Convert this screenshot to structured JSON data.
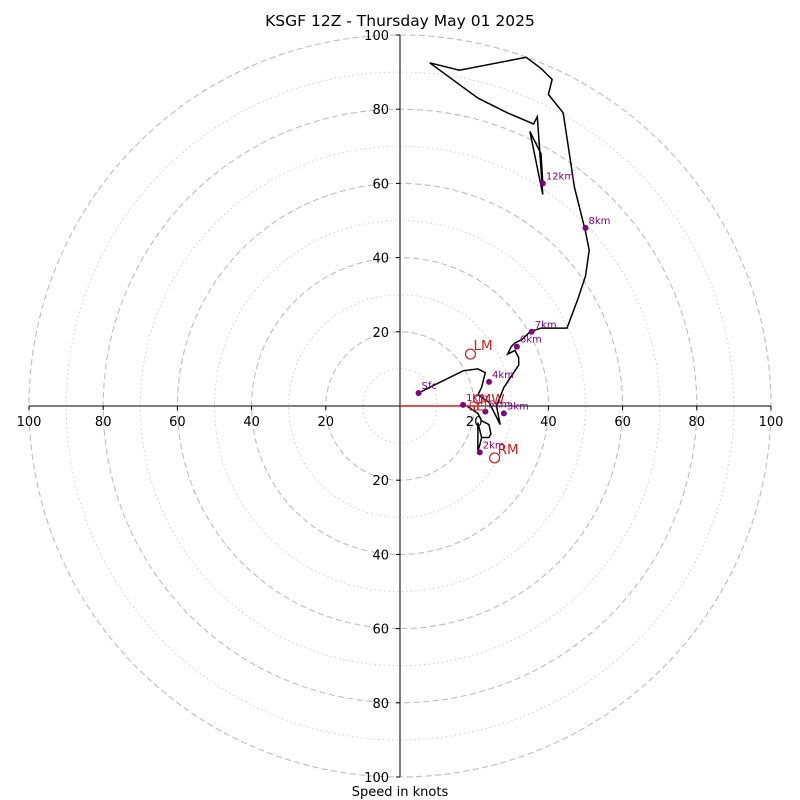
{
  "chart_data": {
    "type": "line",
    "title": "KSGF 12Z - Thursday May 01 2025",
    "xlabel": "Speed in knots",
    "rings_major": [
      20,
      40,
      60,
      80,
      100
    ],
    "rings_minor": [
      10,
      30,
      50,
      70,
      90
    ],
    "axis_range": [
      -100,
      100
    ],
    "x_tick_labels": [
      "100",
      "80",
      "60",
      "40",
      "20",
      "20",
      "40",
      "60",
      "80",
      "100"
    ],
    "y_tick_labels": [
      "100",
      "80",
      "60",
      "40",
      "20",
      "20",
      "40",
      "60",
      "80",
      "100"
    ],
    "grid": true,
    "colors": {
      "trace": "#000000",
      "height_marker": "#800080",
      "motion": "#cc1f1f",
      "ring_major": "#bdbdbd",
      "ring_minor": "#cfcfcf"
    },
    "trace": [
      [
        5,
        3.5
      ],
      [
        10,
        6
      ],
      [
        17,
        9.5
      ],
      [
        21,
        10
      ],
      [
        23,
        9
      ],
      [
        22,
        5
      ],
      [
        21,
        3
      ],
      [
        24,
        1
      ],
      [
        26,
        -3
      ],
      [
        27,
        -5
      ],
      [
        26,
        0
      ],
      [
        28,
        5
      ],
      [
        32,
        11
      ],
      [
        32,
        13
      ],
      [
        31,
        15
      ],
      [
        29,
        14
      ],
      [
        30,
        16
      ],
      [
        31,
        17
      ],
      [
        33,
        18
      ],
      [
        35,
        20
      ],
      [
        38,
        21
      ],
      [
        45,
        21
      ],
      [
        48,
        29
      ],
      [
        50,
        35
      ],
      [
        51,
        42
      ],
      [
        50,
        47
      ],
      [
        47,
        59
      ],
      [
        44,
        79
      ],
      [
        40,
        84
      ],
      [
        41,
        88
      ],
      [
        38,
        91
      ],
      [
        34,
        94
      ],
      [
        16,
        90.5
      ],
      [
        8,
        92.5
      ],
      [
        21,
        83
      ],
      [
        29,
        79
      ],
      [
        36,
        76
      ],
      [
        37,
        78
      ],
      [
        38.5,
        57
      ],
      [
        35,
        74
      ],
      [
        38,
        68
      ],
      [
        38.5,
        60
      ]
    ],
    "trace_lower": [
      [
        18,
        0
      ],
      [
        21,
        -2
      ],
      [
        22,
        -4
      ],
      [
        24,
        -5
      ],
      [
        24.5,
        -7.5
      ],
      [
        24,
        -8.5
      ],
      [
        22,
        -8.5
      ],
      [
        21,
        -4.5
      ],
      [
        21,
        -12
      ],
      [
        21.5,
        -10.5
      ],
      [
        22,
        -8.5
      ]
    ],
    "height_markers": [
      {
        "label": "Sfc",
        "u": 5,
        "v": 3.5
      },
      {
        "label": "1km",
        "u": 17,
        "v": 0.3
      },
      {
        "label": "2km",
        "u": 21.5,
        "v": -12.5
      },
      {
        "label": "3km",
        "u": 28,
        "v": -2
      },
      {
        "label": "4km",
        "u": 24,
        "v": 6.5
      },
      {
        "label": "5km",
        "u": 23,
        "v": -1.5
      },
      {
        "label": "6km",
        "u": 31.5,
        "v": 16
      },
      {
        "label": "7km",
        "u": 35.5,
        "v": 20
      },
      {
        "label": "8km",
        "u": 50,
        "v": 48
      },
      {
        "label": "12km",
        "u": 38.5,
        "v": 60
      }
    ],
    "motion_markers": [
      {
        "label": "LM",
        "u": 19,
        "v": 14
      },
      {
        "label": "RM",
        "u": 25.5,
        "v": -14
      },
      {
        "label": "MW",
        "u": 22,
        "v": 0
      },
      {
        "label": "C",
        "u": 20,
        "v": 0
      }
    ],
    "motion_vector": {
      "from": [
        0,
        0
      ],
      "to": [
        22,
        0
      ]
    }
  }
}
